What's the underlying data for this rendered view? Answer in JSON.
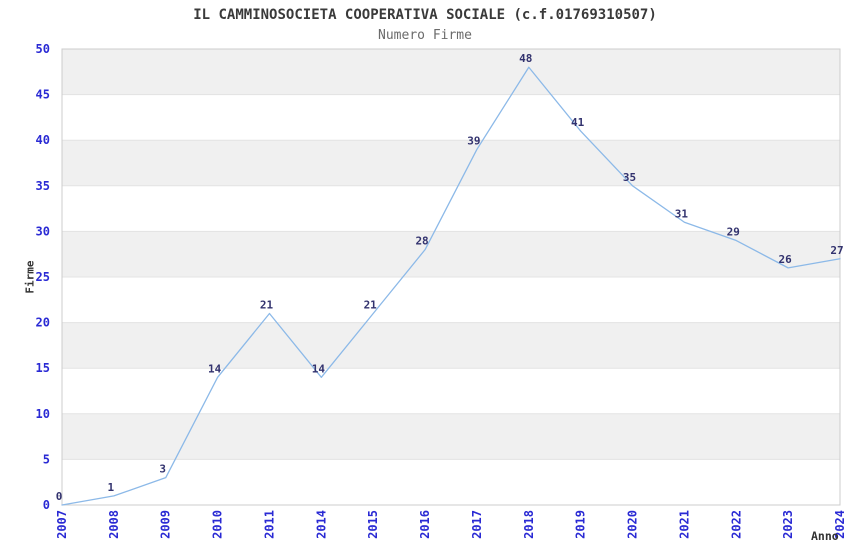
{
  "chart_data": {
    "type": "line",
    "title": "IL CAMMINOSOCIETA COOPERATIVA SOCIALE (c.f.01769310507)",
    "subtitle": "Numero Firme",
    "xlabel": "Anno",
    "ylabel": "Firme",
    "categories": [
      "2007",
      "2008",
      "2009",
      "2010",
      "2011",
      "2014",
      "2015",
      "2016",
      "2017",
      "2018",
      "2019",
      "2020",
      "2021",
      "2022",
      "2023",
      "2024"
    ],
    "values": [
      0,
      1,
      3,
      14,
      21,
      14,
      21,
      28,
      39,
      48,
      41,
      35,
      31,
      29,
      26,
      27
    ],
    "ylim": [
      0,
      50
    ],
    "ytick_step": 5,
    "yticks": [
      0,
      5,
      10,
      15,
      20,
      25,
      30,
      35,
      40,
      45,
      50
    ],
    "grid": "horizontal-alternating-bands",
    "legend": "none",
    "colors": {
      "line": "#8cb9e8",
      "axis_tick_label": "#2a2ad4",
      "point_label": "#32326e",
      "title": "#3a3a3a",
      "subtitle": "#6b6b6b",
      "axis_title": "#333333",
      "band_fill": "#f0f0f0",
      "band_alt_fill": "#ffffff",
      "gridline": "#e3e3e3",
      "plot_border": "#cccccc",
      "background": "#ffffff"
    }
  }
}
